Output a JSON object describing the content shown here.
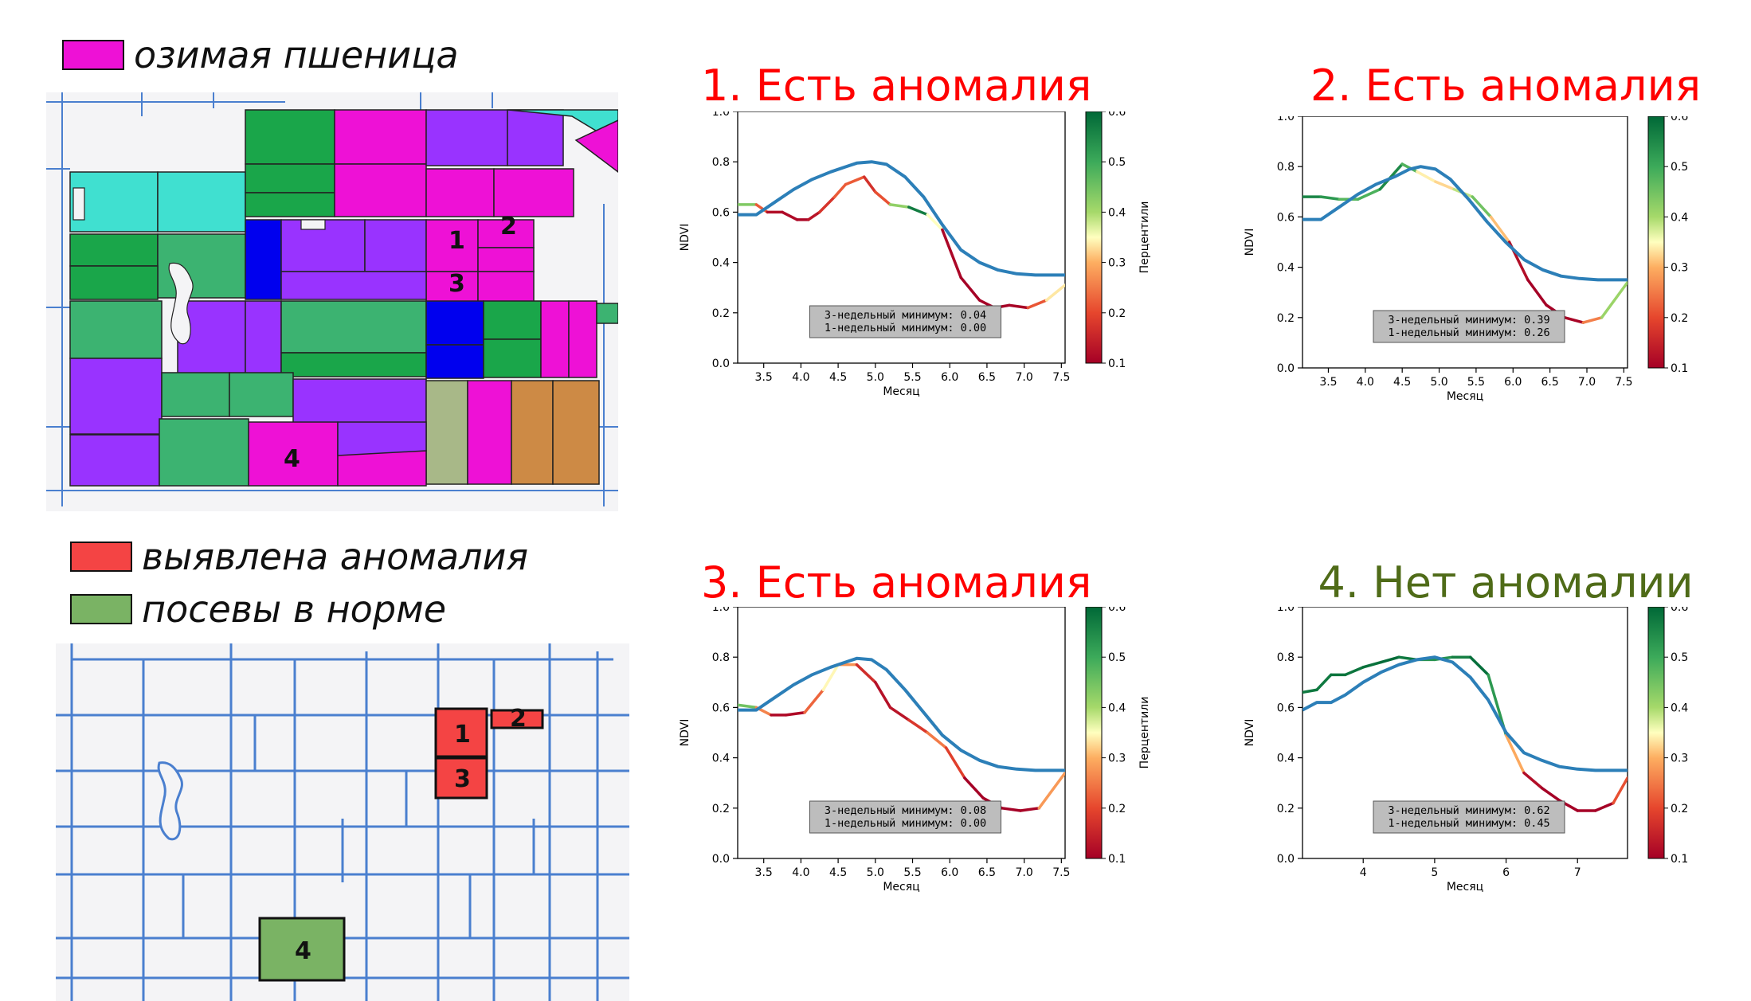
{
  "legend_top": {
    "label": "озимая пшеница",
    "color": "#ee11d6"
  },
  "legend_bottom": [
    {
      "label": "выявлена аномалия",
      "color": "#f44444"
    },
    {
      "label": "посевы в норме",
      "color": "#7ab364"
    }
  ],
  "map_top_labels": [
    "1",
    "2",
    "3",
    "4"
  ],
  "map_bottom_labels": [
    "1",
    "2",
    "3",
    "4"
  ],
  "colors": {
    "anomaly_title": "#ff0000",
    "normal_title": "#4f6b18",
    "median_line": "#2c7fb8"
  },
  "chart_data": [
    {
      "type": "line",
      "title": "1. Есть аномалия",
      "title_color": "#ff0000",
      "xlabel": "Месяц",
      "ylabel": "NDVI",
      "colorbar_label": "Перцентили",
      "xlim": [
        3.15,
        7.55
      ],
      "ylim": [
        0,
        1
      ],
      "xticks": [
        "3.5",
        "4.0",
        "4.5",
        "5.0",
        "5.5",
        "6.0",
        "6.5",
        "7.0",
        "7.5"
      ],
      "yticks": [
        "0.0",
        "0.2",
        "0.4",
        "0.6",
        "0.8",
        "1.0"
      ],
      "colorbar_ticks": [
        "0.1",
        "0.2",
        "0.3",
        "0.4",
        "0.5",
        "0.6"
      ],
      "colorbar_range": [
        0.1,
        0.6
      ],
      "annotation": [
        "3-недельный минимум: 0.04",
        "1-недельный минимум: 0.00"
      ],
      "series": [
        {
          "x": [
            3.15,
            3.4,
            3.65,
            3.9,
            4.15,
            4.4,
            4.6,
            4.75,
            4.95,
            5.15,
            5.4,
            5.65,
            5.9,
            6.15,
            6.4,
            6.65,
            6.9,
            7.15,
            7.4,
            7.55
          ],
          "y": [
            0.59,
            0.59,
            0.64,
            0.69,
            0.73,
            0.76,
            0.78,
            0.795,
            0.8,
            0.79,
            0.74,
            0.66,
            0.55,
            0.45,
            0.4,
            0.37,
            0.355,
            0.35,
            0.35,
            0.35
          ]
        },
        {
          "x": [
            3.15,
            3.4,
            3.55,
            3.75,
            3.95,
            4.1,
            4.25,
            4.45,
            4.6,
            4.85,
            5.0,
            5.2,
            5.45,
            5.7,
            5.9,
            6.15,
            6.4,
            6.6,
            6.8,
            7.05,
            7.3,
            7.55
          ],
          "y": [
            0.63,
            0.63,
            0.6,
            0.6,
            0.57,
            0.57,
            0.6,
            0.66,
            0.71,
            0.74,
            0.68,
            0.63,
            0.62,
            0.59,
            0.53,
            0.34,
            0.25,
            0.22,
            0.23,
            0.22,
            0.25,
            0.31
          ],
          "p": [
            0.55,
            0.32,
            0.12,
            0.12,
            0.11,
            0.11,
            0.15,
            0.2,
            0.24,
            0.2,
            0.14,
            0.28,
            0.56,
            0.58,
            0.12,
            0.1,
            0.1,
            0.1,
            0.1,
            0.11,
            0.32,
            0.35
          ]
        }
      ]
    },
    {
      "type": "line",
      "title": "2. Есть аномалия",
      "title_color": "#ff0000",
      "xlabel": "Месяц",
      "ylabel": "NDVI",
      "colorbar_label": "",
      "xlim": [
        3.15,
        7.55
      ],
      "ylim": [
        0,
        1
      ],
      "xticks": [
        "3.5",
        "4.0",
        "4.5",
        "5.0",
        "5.5",
        "6.0",
        "6.5",
        "7.0",
        "7.5"
      ],
      "yticks": [
        "0.0",
        "0.2",
        "0.4",
        "0.6",
        "0.8",
        "1.0"
      ],
      "colorbar_ticks": [
        "0.1",
        "0.2",
        "0.3",
        "0.4",
        "0.5",
        "0.6"
      ],
      "colorbar_range": [
        0.1,
        0.6
      ],
      "annotation": [
        "3-недельный минимум: 0.39",
        "1-недельный минимум: 0.26"
      ],
      "series": [
        {
          "x": [
            3.15,
            3.4,
            3.65,
            3.9,
            4.15,
            4.4,
            4.6,
            4.75,
            4.95,
            5.15,
            5.4,
            5.65,
            5.9,
            6.15,
            6.4,
            6.65,
            6.9,
            7.15,
            7.4,
            7.55
          ],
          "y": [
            0.59,
            0.59,
            0.64,
            0.69,
            0.73,
            0.76,
            0.79,
            0.8,
            0.79,
            0.75,
            0.67,
            0.58,
            0.5,
            0.43,
            0.39,
            0.365,
            0.355,
            0.35,
            0.35,
            0.35
          ]
        },
        {
          "x": [
            3.15,
            3.4,
            3.65,
            3.9,
            4.2,
            4.5,
            4.7,
            4.95,
            5.2,
            5.45,
            5.7,
            5.95,
            6.2,
            6.45,
            6.7,
            6.95,
            7.2,
            7.55
          ],
          "y": [
            0.68,
            0.68,
            0.67,
            0.67,
            0.71,
            0.81,
            0.78,
            0.74,
            0.71,
            0.68,
            0.6,
            0.5,
            0.35,
            0.25,
            0.2,
            0.18,
            0.2,
            0.34
          ],
          "p": [
            0.56,
            0.55,
            0.5,
            0.45,
            0.52,
            0.58,
            0.38,
            0.3,
            0.35,
            0.42,
            0.48,
            0.14,
            0.1,
            0.1,
            0.1,
            0.11,
            0.4,
            0.42
          ]
        }
      ]
    },
    {
      "type": "line",
      "title": "3. Есть аномалия",
      "title_color": "#ff0000",
      "xlabel": "Месяц",
      "ylabel": "NDVI",
      "colorbar_label": "Перцентили",
      "xlim": [
        3.15,
        7.55
      ],
      "ylim": [
        0,
        1
      ],
      "xticks": [
        "3.5",
        "4.0",
        "4.5",
        "5.0",
        "5.5",
        "6.0",
        "6.5",
        "7.0",
        "7.5"
      ],
      "yticks": [
        "0.0",
        "0.2",
        "0.4",
        "0.6",
        "0.8",
        "1.0"
      ],
      "colorbar_ticks": [
        "0.1",
        "0.2",
        "0.3",
        "0.4",
        "0.5",
        "0.6"
      ],
      "colorbar_range": [
        0.1,
        0.6
      ],
      "annotation": [
        "3-недельный минимум: 0.08",
        "1-недельный минимум: 0.00"
      ],
      "series": [
        {
          "x": [
            3.15,
            3.4,
            3.65,
            3.9,
            4.15,
            4.4,
            4.6,
            4.75,
            4.95,
            5.15,
            5.4,
            5.65,
            5.9,
            6.15,
            6.4,
            6.65,
            6.9,
            7.15,
            7.4,
            7.55
          ],
          "y": [
            0.59,
            0.59,
            0.64,
            0.69,
            0.73,
            0.76,
            0.78,
            0.795,
            0.79,
            0.75,
            0.67,
            0.58,
            0.49,
            0.43,
            0.39,
            0.365,
            0.355,
            0.35,
            0.35,
            0.35
          ]
        },
        {
          "x": [
            3.15,
            3.4,
            3.6,
            3.8,
            4.05,
            4.3,
            4.5,
            4.75,
            5.0,
            5.2,
            5.45,
            5.7,
            5.95,
            6.2,
            6.45,
            6.7,
            6.95,
            7.2,
            7.55
          ],
          "y": [
            0.61,
            0.6,
            0.57,
            0.57,
            0.58,
            0.67,
            0.77,
            0.77,
            0.7,
            0.6,
            0.55,
            0.5,
            0.44,
            0.32,
            0.24,
            0.2,
            0.19,
            0.2,
            0.34
          ],
          "p": [
            0.5,
            0.4,
            0.12,
            0.11,
            0.12,
            0.34,
            0.35,
            0.2,
            0.13,
            0.12,
            0.14,
            0.22,
            0.28,
            0.1,
            0.1,
            0.1,
            0.1,
            0.11,
            0.45
          ]
        }
      ]
    },
    {
      "type": "line",
      "title": "4. Нет аномалии",
      "title_color": "#4f6b18",
      "xlabel": "Месяц",
      "ylabel": "NDVI",
      "colorbar_label": "",
      "xlim": [
        3.15,
        7.7
      ],
      "ylim": [
        0,
        1
      ],
      "xticks": [
        "4",
        "5",
        "6",
        "7"
      ],
      "yticks": [
        "0.0",
        "0.2",
        "0.4",
        "0.6",
        "0.8",
        "1.0"
      ],
      "colorbar_ticks": [
        "0.1",
        "0.2",
        "0.3",
        "0.4",
        "0.5",
        "0.6"
      ],
      "colorbar_range": [
        0.1,
        0.6
      ],
      "annotation": [
        "3-недельный минимум: 0.62",
        "1-недельный минимум: 0.45"
      ],
      "series": [
        {
          "x": [
            3.15,
            3.35,
            3.55,
            3.75,
            4.0,
            4.25,
            4.5,
            4.75,
            5.0,
            5.25,
            5.5,
            5.75,
            6.0,
            6.25,
            6.5,
            6.75,
            7.0,
            7.25,
            7.5,
            7.7
          ],
          "y": [
            0.59,
            0.62,
            0.62,
            0.65,
            0.7,
            0.74,
            0.77,
            0.79,
            0.8,
            0.78,
            0.72,
            0.63,
            0.5,
            0.42,
            0.39,
            0.365,
            0.355,
            0.35,
            0.35,
            0.35
          ]
        },
        {
          "x": [
            3.15,
            3.35,
            3.55,
            3.75,
            4.0,
            4.25,
            4.5,
            4.75,
            5.0,
            5.25,
            5.5,
            5.75,
            6.0,
            6.25,
            6.5,
            6.75,
            7.0,
            7.25,
            7.5,
            7.7
          ],
          "y": [
            0.66,
            0.67,
            0.73,
            0.73,
            0.76,
            0.78,
            0.8,
            0.79,
            0.79,
            0.8,
            0.8,
            0.73,
            0.49,
            0.34,
            0.28,
            0.23,
            0.19,
            0.19,
            0.22,
            0.32
          ],
          "p": [
            0.58,
            0.57,
            0.58,
            0.58,
            0.58,
            0.59,
            0.6,
            0.55,
            0.52,
            0.55,
            0.58,
            0.6,
            0.45,
            0.14,
            0.1,
            0.1,
            0.1,
            0.1,
            0.1,
            0.32
          ]
        }
      ]
    }
  ]
}
